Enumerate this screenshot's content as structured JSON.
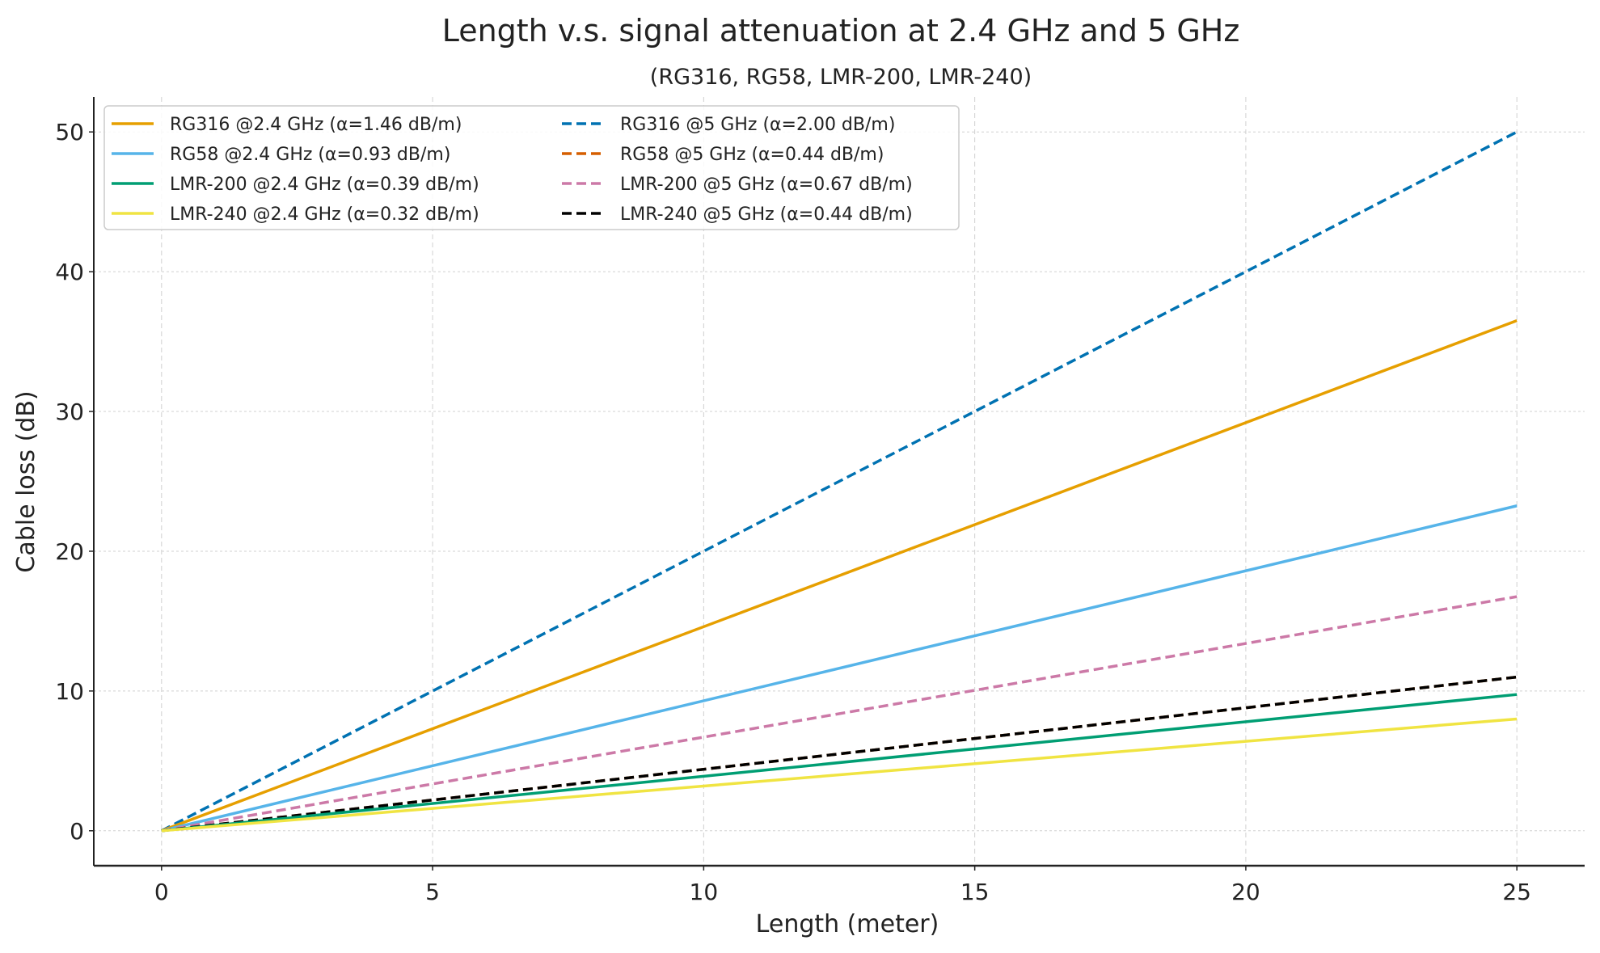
{
  "chart_data": {
    "type": "line",
    "title": "Length v.s. signal attenuation at 2.4 GHz and 5 GHz",
    "subtitle": "(RG316, RG58, LMR-200, LMR-240)",
    "xlabel": "Length (meter)",
    "ylabel": "Cable loss (dB)",
    "xlim": [
      -1.25,
      26.25
    ],
    "ylim": [
      -2.5,
      52.5
    ],
    "xticks": [
      0,
      5,
      10,
      15,
      20,
      25
    ],
    "yticks": [
      0,
      10,
      20,
      30,
      40,
      50
    ],
    "grid": true,
    "legend_placement": "top-left",
    "legend_columns": 2,
    "x": [
      0,
      25
    ],
    "series": [
      {
        "name": "RG316 @2.4 GHz (α=1.46 dB/m)",
        "color": "#E69F00",
        "dash": "solid",
        "values": [
          0,
          36.5
        ]
      },
      {
        "name": "RG58 @2.4 GHz (α=0.93 dB/m)",
        "color": "#56B4E9",
        "dash": "solid",
        "values": [
          0,
          23.25
        ]
      },
      {
        "name": "LMR-200 @2.4 GHz (α=0.39 dB/m)",
        "color": "#009E73",
        "dash": "solid",
        "values": [
          0,
          9.75
        ]
      },
      {
        "name": "LMR-240 @2.4 GHz (α=0.32 dB/m)",
        "color": "#F0E442",
        "dash": "solid",
        "values": [
          0,
          8.0
        ]
      },
      {
        "name": "RG316 @5 GHz (α=2.00 dB/m)",
        "color": "#0072B2",
        "dash": "dashed",
        "values": [
          0,
          50.0
        ]
      },
      {
        "name": "RG58 @5 GHz (α=0.44 dB/m)",
        "color": "#D55E00",
        "dash": "dashed",
        "values": [
          0,
          11.0
        ]
      },
      {
        "name": "LMR-200 @5 GHz (α=0.67 dB/m)",
        "color": "#CC79A7",
        "dash": "dashed",
        "values": [
          0,
          16.75
        ]
      },
      {
        "name": "LMR-240 @5 GHz (α=0.44 dB/m)",
        "color": "#000000",
        "dash": "dashed",
        "values": [
          0,
          11.0
        ]
      }
    ]
  }
}
